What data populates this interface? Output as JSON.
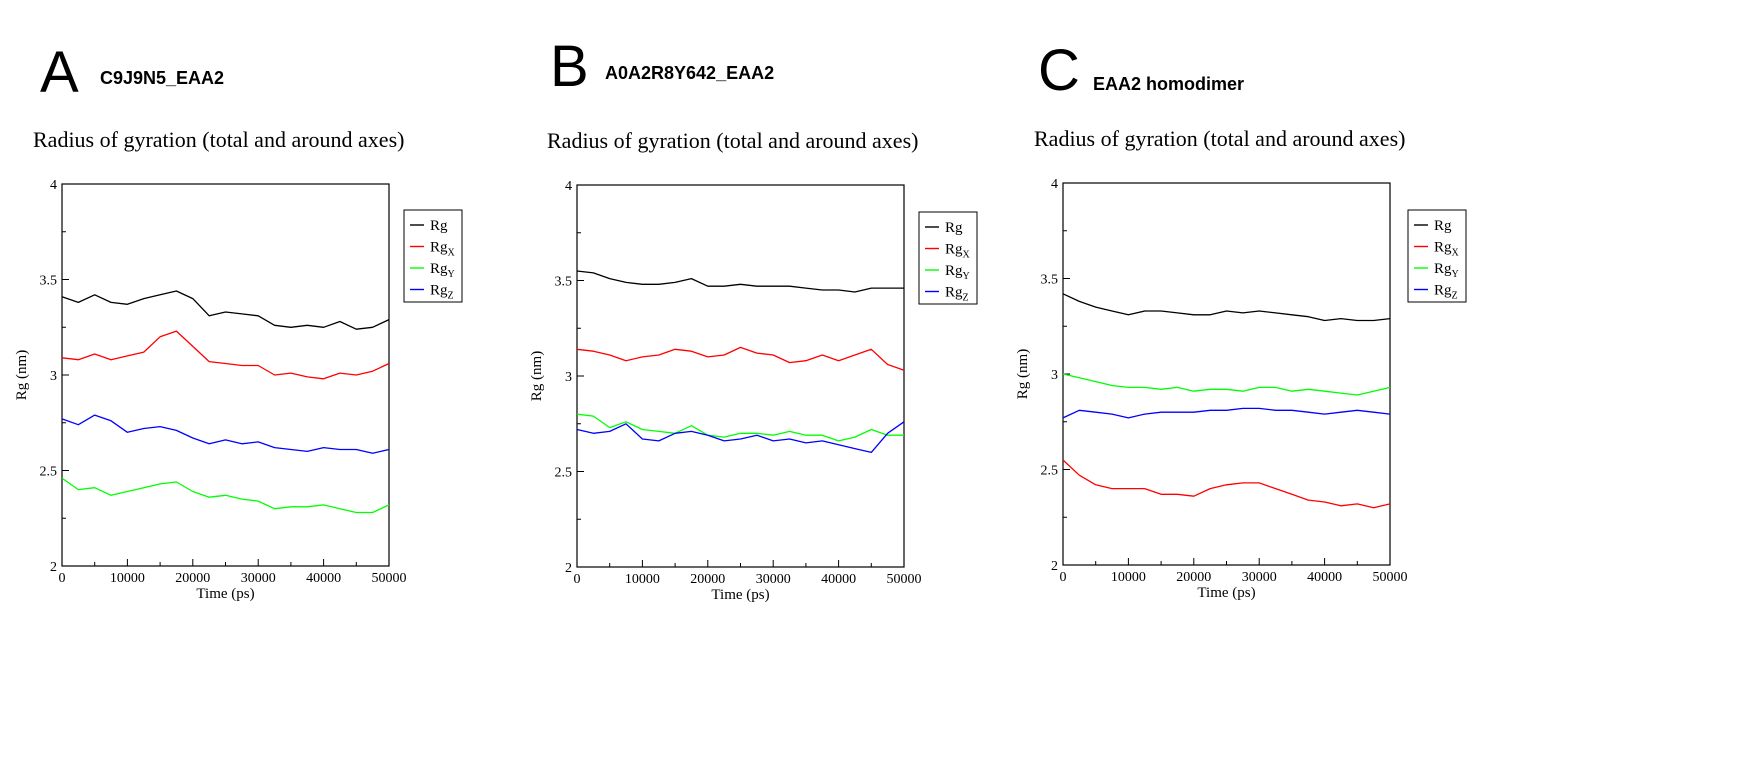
{
  "panels": [
    {
      "letter": "A",
      "name": "C9J9N5_EAA2",
      "title": "Radius of gyration (total and around axes)"
    },
    {
      "letter": "B",
      "name": "A0A2R8Y642_EAA2",
      "title": "Radius of gyration (total and around axes)"
    },
    {
      "letter": "C",
      "name": "EAA2 homodimer",
      "title": "Radius of gyration (total and around axes)"
    }
  ],
  "legend_labels": [
    "Rg",
    "Rgx",
    "Rgy",
    "Rgz"
  ],
  "chart_data": [
    {
      "type": "line",
      "title": "Radius of gyration (total and around axes)",
      "xlabel": "Time (ps)",
      "ylabel": "Rg (nm)",
      "xlim": [
        0,
        50000
      ],
      "ylim": [
        2,
        4
      ],
      "x_ticks": [
        0,
        10000,
        20000,
        30000,
        40000,
        50000
      ],
      "y_ticks": [
        2,
        2.5,
        3,
        3.5,
        4
      ],
      "y_tick_labels": [
        "2",
        "2.5",
        "3",
        "3.5",
        "4"
      ],
      "legend_position": "top-right",
      "x": [
        0,
        2500,
        5000,
        7500,
        10000,
        12500,
        15000,
        17500,
        20000,
        22500,
        25000,
        27500,
        30000,
        32500,
        35000,
        37500,
        40000,
        42500,
        45000,
        47500,
        50000
      ],
      "series": [
        {
          "name": "Rg",
          "color": "#000000",
          "values": [
            3.41,
            3.38,
            3.42,
            3.38,
            3.37,
            3.4,
            3.42,
            3.44,
            3.4,
            3.31,
            3.33,
            3.32,
            3.31,
            3.26,
            3.25,
            3.26,
            3.25,
            3.28,
            3.24,
            3.25,
            3.29
          ]
        },
        {
          "name": "Rgx",
          "color": "#ff0000",
          "values": [
            3.09,
            3.08,
            3.11,
            3.08,
            3.1,
            3.12,
            3.2,
            3.23,
            3.15,
            3.07,
            3.06,
            3.05,
            3.05,
            3.0,
            3.01,
            2.99,
            2.98,
            3.01,
            3.0,
            3.02,
            3.06
          ]
        },
        {
          "name": "Rgy",
          "color": "#00ff00",
          "values": [
            2.46,
            2.4,
            2.41,
            2.37,
            2.39,
            2.41,
            2.43,
            2.44,
            2.39,
            2.36,
            2.37,
            2.35,
            2.34,
            2.3,
            2.31,
            2.31,
            2.32,
            2.3,
            2.28,
            2.28,
            2.32
          ]
        },
        {
          "name": "Rgz",
          "color": "#0000ff",
          "values": [
            2.77,
            2.74,
            2.79,
            2.76,
            2.7,
            2.72,
            2.73,
            2.71,
            2.67,
            2.64,
            2.66,
            2.64,
            2.65,
            2.62,
            2.61,
            2.6,
            2.62,
            2.61,
            2.61,
            2.59,
            2.61
          ]
        }
      ]
    },
    {
      "type": "line",
      "title": "Radius of gyration (total and around axes)",
      "xlabel": "Time (ps)",
      "ylabel": "Rg (nm)",
      "xlim": [
        0,
        50000
      ],
      "ylim": [
        2,
        4
      ],
      "x_ticks": [
        0,
        10000,
        20000,
        30000,
        40000,
        50000
      ],
      "y_ticks": [
        2,
        2.5,
        3,
        3.5,
        4
      ],
      "y_tick_labels": [
        "2",
        "2.5",
        "3",
        "3.5",
        "4"
      ],
      "legend_position": "top-right",
      "x": [
        0,
        2500,
        5000,
        7500,
        10000,
        12500,
        15000,
        17500,
        20000,
        22500,
        25000,
        27500,
        30000,
        32500,
        35000,
        37500,
        40000,
        42500,
        45000,
        47500,
        50000
      ],
      "series": [
        {
          "name": "Rg",
          "color": "#000000",
          "values": [
            3.55,
            3.54,
            3.51,
            3.49,
            3.48,
            3.48,
            3.49,
            3.51,
            3.47,
            3.47,
            3.48,
            3.47,
            3.47,
            3.47,
            3.46,
            3.45,
            3.45,
            3.44,
            3.46,
            3.46,
            3.46
          ]
        },
        {
          "name": "Rgx",
          "color": "#ff0000",
          "values": [
            3.14,
            3.13,
            3.11,
            3.08,
            3.1,
            3.11,
            3.14,
            3.13,
            3.1,
            3.11,
            3.15,
            3.12,
            3.11,
            3.07,
            3.08,
            3.11,
            3.08,
            3.11,
            3.14,
            3.06,
            3.03
          ]
        },
        {
          "name": "Rgy",
          "color": "#00ff00",
          "values": [
            2.8,
            2.79,
            2.73,
            2.76,
            2.72,
            2.71,
            2.7,
            2.74,
            2.69,
            2.68,
            2.7,
            2.7,
            2.69,
            2.71,
            2.69,
            2.69,
            2.66,
            2.68,
            2.72,
            2.69,
            2.69
          ]
        },
        {
          "name": "Rgz",
          "color": "#0000ff",
          "values": [
            2.72,
            2.7,
            2.71,
            2.75,
            2.67,
            2.66,
            2.7,
            2.71,
            2.69,
            2.66,
            2.67,
            2.69,
            2.66,
            2.67,
            2.65,
            2.66,
            2.64,
            2.62,
            2.6,
            2.7,
            2.76
          ]
        }
      ]
    },
    {
      "type": "line",
      "title": "Radius of gyration (total and around axes)",
      "xlabel": "Time (ps)",
      "ylabel": "Rg (nm)",
      "xlim": [
        0,
        50000
      ],
      "ylim": [
        2,
        4
      ],
      "x_ticks": [
        0,
        10000,
        20000,
        30000,
        40000,
        50000
      ],
      "y_ticks": [
        2,
        2.5,
        3,
        3.5,
        4
      ],
      "y_tick_labels": [
        "2",
        "2.5",
        "3",
        "3.5",
        "4"
      ],
      "legend_position": "top-right",
      "x": [
        0,
        2500,
        5000,
        7500,
        10000,
        12500,
        15000,
        17500,
        20000,
        22500,
        25000,
        27500,
        30000,
        32500,
        35000,
        37500,
        40000,
        42500,
        45000,
        47500,
        50000
      ],
      "series": [
        {
          "name": "Rg",
          "color": "#000000",
          "values": [
            3.42,
            3.38,
            3.35,
            3.33,
            3.31,
            3.33,
            3.33,
            3.32,
            3.31,
            3.31,
            3.33,
            3.32,
            3.33,
            3.32,
            3.31,
            3.3,
            3.28,
            3.29,
            3.28,
            3.28,
            3.29
          ]
        },
        {
          "name": "Rgx",
          "color": "#ff0000",
          "values": [
            2.55,
            2.47,
            2.42,
            2.4,
            2.4,
            2.4,
            2.37,
            2.37,
            2.36,
            2.4,
            2.42,
            2.43,
            2.43,
            2.4,
            2.37,
            2.34,
            2.33,
            2.31,
            2.32,
            2.3,
            2.32
          ]
        },
        {
          "name": "Rgy",
          "color": "#00ff00",
          "values": [
            3.0,
            2.98,
            2.96,
            2.94,
            2.93,
            2.93,
            2.92,
            2.93,
            2.91,
            2.92,
            2.92,
            2.91,
            2.93,
            2.93,
            2.91,
            2.92,
            2.91,
            2.9,
            2.89,
            2.91,
            2.93
          ]
        },
        {
          "name": "Rgz",
          "color": "#0000ff",
          "values": [
            2.77,
            2.81,
            2.8,
            2.79,
            2.77,
            2.79,
            2.8,
            2.8,
            2.8,
            2.81,
            2.81,
            2.82,
            2.82,
            2.81,
            2.81,
            2.8,
            2.79,
            2.8,
            2.81,
            2.8,
            2.79
          ]
        }
      ]
    }
  ]
}
